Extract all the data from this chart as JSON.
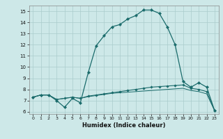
{
  "xlabel": "Humidex (Indice chaleur)",
  "xlim": [
    -0.5,
    23.5
  ],
  "ylim": [
    5.8,
    15.5
  ],
  "yticks": [
    6,
    7,
    8,
    9,
    10,
    11,
    12,
    13,
    14,
    15
  ],
  "xticks": [
    0,
    1,
    2,
    3,
    4,
    5,
    6,
    7,
    8,
    9,
    10,
    11,
    12,
    13,
    14,
    15,
    16,
    17,
    18,
    19,
    20,
    21,
    22,
    23
  ],
  "bg_color": "#cde8e8",
  "grid_color": "#aacccc",
  "line_color": "#1a6b6b",
  "line1_x": [
    0,
    1,
    2,
    3,
    4,
    5,
    6,
    7,
    8,
    9,
    10,
    11,
    12,
    13,
    14,
    15,
    16,
    17,
    18,
    19,
    20,
    21,
    22,
    23
  ],
  "line1_y": [
    7.3,
    7.5,
    7.5,
    7.0,
    6.4,
    7.2,
    6.8,
    9.5,
    11.9,
    12.8,
    13.6,
    13.8,
    14.3,
    14.6,
    15.1,
    15.1,
    14.8,
    13.6,
    12.0,
    8.7,
    8.2,
    8.6,
    8.2,
    6.1
  ],
  "line2_x": [
    0,
    1,
    2,
    3,
    4,
    5,
    6,
    7,
    8,
    9,
    10,
    11,
    12,
    13,
    14,
    15,
    16,
    17,
    18,
    19,
    20,
    21,
    22,
    23
  ],
  "line2_y": [
    7.3,
    7.5,
    7.5,
    7.1,
    7.2,
    7.3,
    7.2,
    7.4,
    7.5,
    7.6,
    7.7,
    7.8,
    7.9,
    8.0,
    8.1,
    8.2,
    8.25,
    8.3,
    8.35,
    8.4,
    8.1,
    8.0,
    7.8,
    6.1
  ],
  "line3_x": [
    0,
    1,
    2,
    3,
    4,
    5,
    6,
    7,
    8,
    9,
    10,
    11,
    12,
    13,
    14,
    15,
    16,
    17,
    18,
    19,
    20,
    21,
    22,
    23
  ],
  "line3_y": [
    7.3,
    7.5,
    7.5,
    7.1,
    7.2,
    7.3,
    7.2,
    7.35,
    7.45,
    7.55,
    7.65,
    7.7,
    7.75,
    7.8,
    7.85,
    7.9,
    7.95,
    8.0,
    8.05,
    8.1,
    7.9,
    7.8,
    7.6,
    6.1
  ]
}
